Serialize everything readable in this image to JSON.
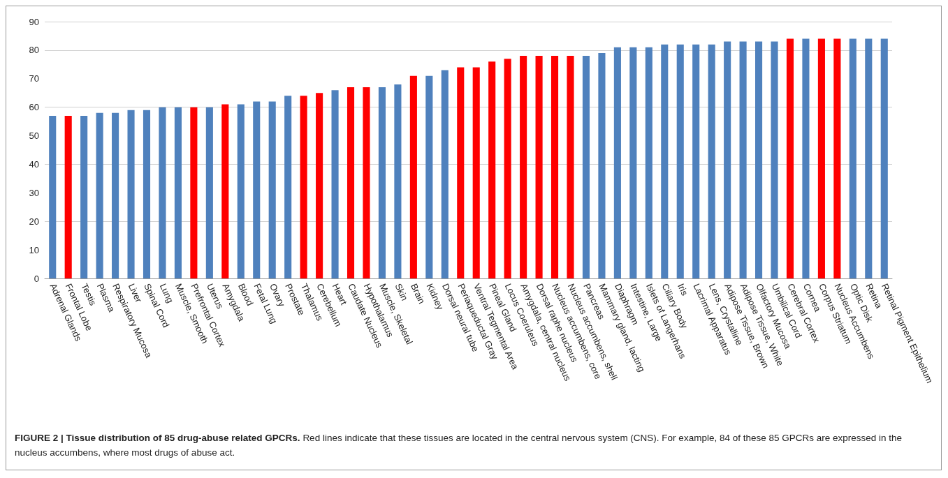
{
  "chart_data": {
    "type": "bar",
    "title": "FIGURE 2 | Tissue distribution of 85 drug-abuse related GPCRs.",
    "annotations": [
      "Red lines indicate that these tissues are located in the central nervous system (CNS). For example, 84 of these 85 GPCRs are expressed in the nucleus accumbens, where most drugs of abuse act."
    ],
    "categories": [
      "Adrenal Glands",
      "Frontal Lobe",
      "Testis",
      "Plasma",
      "Respiratory Mucosa",
      "Liver",
      "Spinal Cord",
      "Lung",
      "Muscle, Smooth",
      "Prefrontal Cortex",
      "Uterus",
      "Amygdala",
      "Blood",
      "Fetal Lung",
      "Ovary",
      "Prostate",
      "Thalamus",
      "Cerebellum",
      "Heart",
      "Caudate Nucleus",
      "Hypothalamus",
      "Muscle, Skeletal",
      "Skin",
      "Brain",
      "Kidney",
      "Dorsal neural tube",
      "Periaqueductal Gray",
      "Ventral Tegmental Area",
      "Pineal Gland",
      "Locus Coeruleus",
      "Amygdala, central nucleus",
      "Dorsal raphe nucleus",
      "Nucleus accumbens, core",
      "Nucleus accumbens, shell",
      "Pancreas",
      "Mammary gland, lacting",
      "Diaphragm",
      "Intestine, Large",
      "Islets of Langerhans",
      "Ciliary Body",
      "Iris",
      "Lacrimal Apparatus",
      "Lens, Crystalline",
      "Adipose Tissue, Brown",
      "Adipose Tissue, White",
      "Olfactory Mucosa",
      "Umbilical Cord",
      "Cerebral Cortex",
      "Cornea",
      "Corpus Striatum",
      "Nucleus Accumbens",
      "Optic Disk",
      "Retina",
      "Retinal Pigment Epithelium"
    ],
    "values": [
      57,
      57,
      57,
      58,
      58,
      59,
      59,
      60,
      60,
      60,
      60,
      61,
      61,
      62,
      62,
      64,
      64,
      65,
      66,
      67,
      67,
      67,
      68,
      71,
      71,
      73,
      74,
      74,
      76,
      77,
      78,
      78,
      78,
      78,
      78,
      79,
      81,
      81,
      81,
      82,
      82,
      82,
      82,
      83,
      83,
      83,
      83,
      84,
      84,
      84,
      84,
      84,
      84,
      84
    ],
    "colors": [
      "#4f81bd",
      "#ff0000",
      "#4f81bd",
      "#4f81bd",
      "#4f81bd",
      "#4f81bd",
      "#4f81bd",
      "#4f81bd",
      "#4f81bd",
      "#ff0000",
      "#4f81bd",
      "#ff0000",
      "#4f81bd",
      "#4f81bd",
      "#4f81bd",
      "#4f81bd",
      "#ff0000",
      "#ff0000",
      "#4f81bd",
      "#ff0000",
      "#ff0000",
      "#4f81bd",
      "#4f81bd",
      "#ff0000",
      "#4f81bd",
      "#4f81bd",
      "#ff0000",
      "#ff0000",
      "#ff0000",
      "#ff0000",
      "#ff0000",
      "#ff0000",
      "#ff0000",
      "#ff0000",
      "#4f81bd",
      "#4f81bd",
      "#4f81bd",
      "#4f81bd",
      "#4f81bd",
      "#4f81bd",
      "#4f81bd",
      "#4f81bd",
      "#4f81bd",
      "#4f81bd",
      "#4f81bd",
      "#4f81bd",
      "#4f81bd",
      "#ff0000",
      "#4f81bd",
      "#ff0000",
      "#ff0000",
      "#4f81bd",
      "#4f81bd",
      "#4f81bd"
    ],
    "ylim": [
      0,
      90
    ],
    "yticks": [
      0,
      10,
      20,
      30,
      40,
      50,
      60,
      70,
      80,
      90
    ],
    "grid": "y"
  }
}
